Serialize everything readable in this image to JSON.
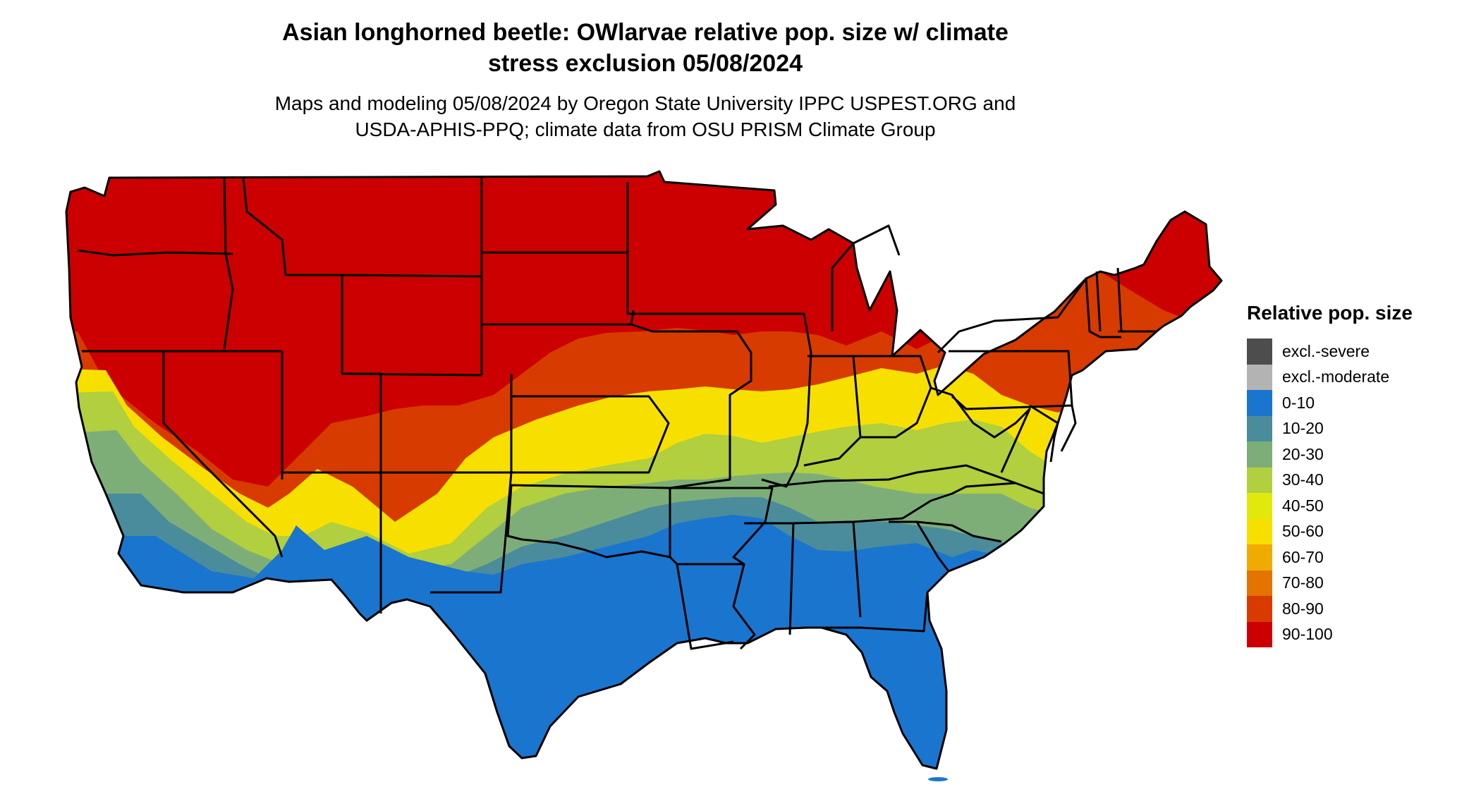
{
  "title_line1": "Asian longhorned beetle: OWlarvae relative pop. size w/ climate",
  "title_line2": "stress exclusion 05/08/2024",
  "subtitle_line1": "Maps and modeling 05/08/2024 by Oregon State University IPPC USPEST.ORG and",
  "subtitle_line2": "USDA-APHIS-PPQ; climate data from OSU PRISM Climate Group",
  "legend": {
    "title": "Relative pop. size",
    "items": [
      {
        "label": "excl.-severe",
        "color": "#4d4d4d"
      },
      {
        "label": "excl.-moderate",
        "color": "#b3b3b3"
      },
      {
        "label": "0-10",
        "color": "#1a75cf"
      },
      {
        "label": "10-20",
        "color": "#4a8c9c"
      },
      {
        "label": "20-30",
        "color": "#7eae78"
      },
      {
        "label": "30-40",
        "color": "#b1cf3e"
      },
      {
        "label": "40-50",
        "color": "#e1e80c"
      },
      {
        "label": "50-60",
        "color": "#f7e000"
      },
      {
        "label": "60-70",
        "color": "#f0ab00"
      },
      {
        "label": "70-80",
        "color": "#e57300"
      },
      {
        "label": "80-90",
        "color": "#d83b00"
      },
      {
        "label": "90-100",
        "color": "#cc0000"
      }
    ]
  }
}
